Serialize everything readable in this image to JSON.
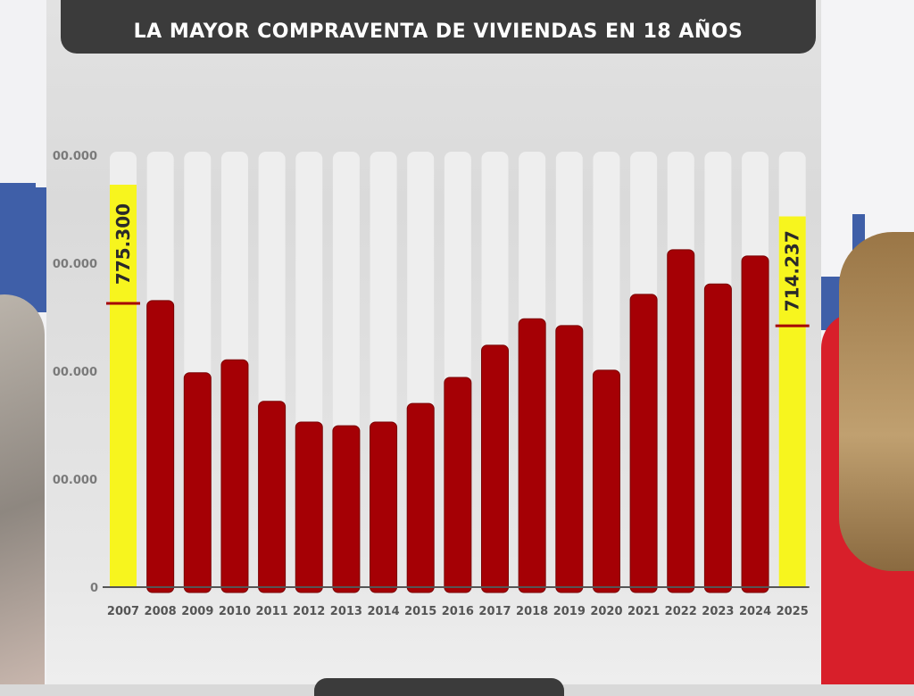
{
  "title": "LA MAYOR COMPRAVENTA DE VIVIENDAS EN 18 AÑOS",
  "colors": {
    "bar": "#a50005",
    "highlight": "#f7f51e",
    "track": "#eeeeee",
    "marker": "#a50005",
    "title_bg": "#3b3b3b"
  },
  "chart_data": {
    "type": "bar",
    "title": "LA MAYOR COMPRAVENTA DE VIVIENDAS EN 18 AÑOS",
    "xlabel": "",
    "ylabel": "",
    "categories": [
      "2007",
      "2008",
      "2009",
      "2010",
      "2011",
      "2012",
      "2013",
      "2014",
      "2015",
      "2016",
      "2017",
      "2018",
      "2019",
      "2020",
      "2021",
      "2022",
      "2023",
      "2024",
      "2025"
    ],
    "values": [
      775300,
      552000,
      413000,
      438000,
      358000,
      318000,
      311000,
      318000,
      354000,
      404000,
      466000,
      517000,
      504000,
      418000,
      564000,
      650000,
      584000,
      638000,
      714237
    ],
    "highlighted": [
      "2007",
      "2025"
    ],
    "data_labels": {
      "2007": "775.300",
      "2025": "714.237"
    },
    "ylim": [
      0,
      840000
    ],
    "yticks": [
      0,
      208000,
      416000,
      624000,
      832000
    ],
    "ytick_labels": [
      "0",
      "00.000",
      "00.000",
      "00.000",
      "00.000"
    ],
    "grid": false,
    "legend": "none"
  }
}
